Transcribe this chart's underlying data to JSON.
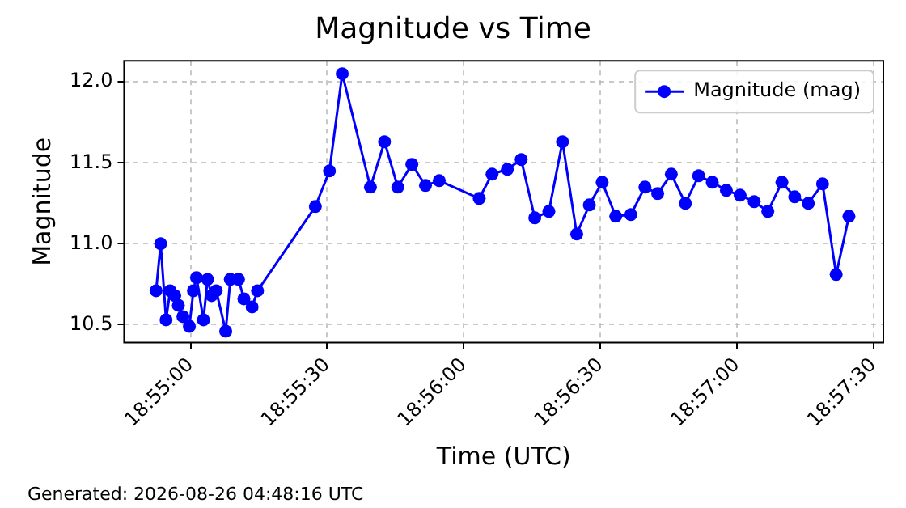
{
  "chart_data": {
    "type": "line",
    "title": "Magnitude vs Time",
    "xlabel": "Time (UTC)",
    "ylabel": "Magnitude",
    "annotations": [
      "Generated: 2026-08-26 04:48:16 UTC"
    ],
    "x": [
      18.91456,
      18.91484,
      18.91517,
      18.91542,
      18.9157,
      18.91592,
      18.9162,
      18.91659,
      18.91684,
      18.91703,
      18.91745,
      18.9177,
      18.91795,
      18.91823,
      18.91881,
      18.91909,
      18.91959,
      18.91992,
      18.92042,
      18.92075,
      18.92428,
      18.92514,
      18.92592,
      18.92764,
      18.9285,
      18.92931,
      18.93017,
      18.931,
      18.93184,
      18.93428,
      18.93506,
      18.936,
      18.93684,
      18.93767,
      18.93853,
      18.93936,
      18.94023,
      18.941,
      18.94178,
      18.94261,
      18.94353,
      18.94439,
      18.94517,
      18.946,
      18.94686,
      18.94767,
      18.9485,
      18.94936,
      18.9502,
      18.95106,
      18.95189,
      18.95275,
      18.95353,
      18.95436,
      18.95523,
      18.95606,
      18.95684
    ],
    "series": [
      {
        "name": "Magnitude (mag)",
        "color": "#0000ff",
        "values": [
          10.71,
          11.0,
          10.53,
          10.71,
          10.68,
          10.62,
          10.55,
          10.49,
          10.71,
          10.79,
          10.53,
          10.78,
          10.68,
          10.71,
          10.46,
          10.78,
          10.78,
          10.66,
          10.61,
          10.71,
          11.23,
          11.45,
          12.05,
          11.35,
          11.63,
          11.35,
          11.49,
          11.36,
          11.39,
          11.28,
          11.43,
          11.46,
          11.52,
          11.16,
          11.2,
          11.63,
          11.06,
          11.24,
          11.38,
          11.17,
          11.18,
          11.35,
          11.31,
          11.43,
          11.25,
          11.42,
          11.38,
          11.33,
          11.3,
          11.26,
          11.2,
          11.38,
          11.29,
          11.25,
          11.37,
          10.81,
          11.17
        ]
      }
    ],
    "xlim": [
      18.91261,
      18.95894
    ],
    "xticks": [
      {
        "value": 18.91667,
        "label": "18:55:00"
      },
      {
        "value": 18.925,
        "label": "18:55:30"
      },
      {
        "value": 18.93333,
        "label": "18:56:00"
      },
      {
        "value": 18.94167,
        "label": "18:56:30"
      },
      {
        "value": 18.95,
        "label": "18:57:00"
      },
      {
        "value": 18.95833,
        "label": "18:57:30"
      }
    ],
    "ylim": [
      10.39,
      12.13
    ],
    "yticks": [
      10.5,
      {
        "value": 11,
        "label": "11.0"
      },
      11.5,
      {
        "value": 12,
        "label": "12.0"
      }
    ],
    "grid": true,
    "legend": "top right",
    "marker": "circle",
    "line_style": "solid"
  }
}
